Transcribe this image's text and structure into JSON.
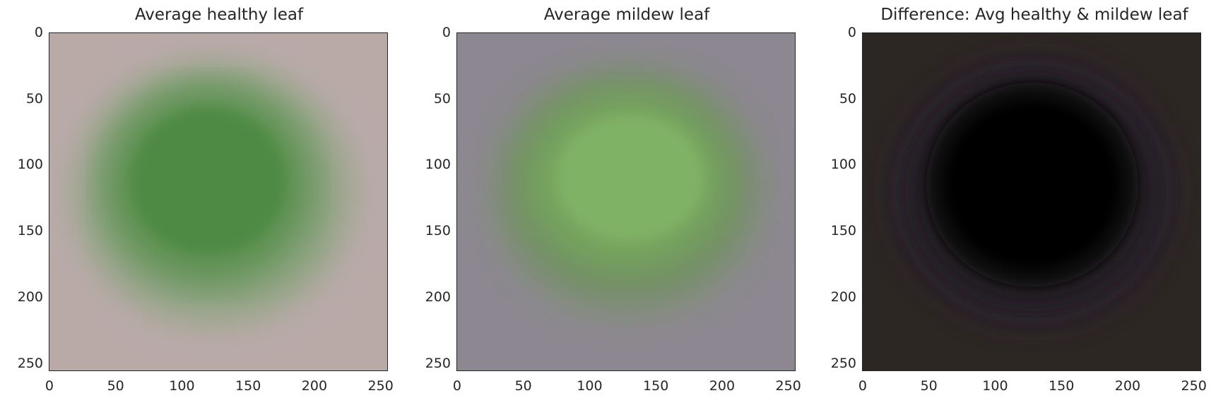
{
  "panels": [
    {
      "title": "Average healthy leaf",
      "bg": "#b9aaa8",
      "leaf_outer": "#86a17a",
      "leaf_core": "#4f8a45",
      "edge": "#a9a39a"
    },
    {
      "title": "Average mildew leaf",
      "bg": "#8c8790",
      "leaf_outer": "#7a9468",
      "leaf_core": "#7cad62",
      "edge": "#8e8b86"
    },
    {
      "title": "Difference: Avg healthy & mildew leaf",
      "bg": "#2d2724",
      "leaf_outer": "#251a26",
      "leaf_core": "#000000",
      "edge": "#3a2f40"
    }
  ],
  "axis_ticks": {
    "x": [
      "0",
      "50",
      "100",
      "150",
      "200",
      "250"
    ],
    "y": [
      "0",
      "50",
      "100",
      "150",
      "200",
      "250"
    ]
  }
}
